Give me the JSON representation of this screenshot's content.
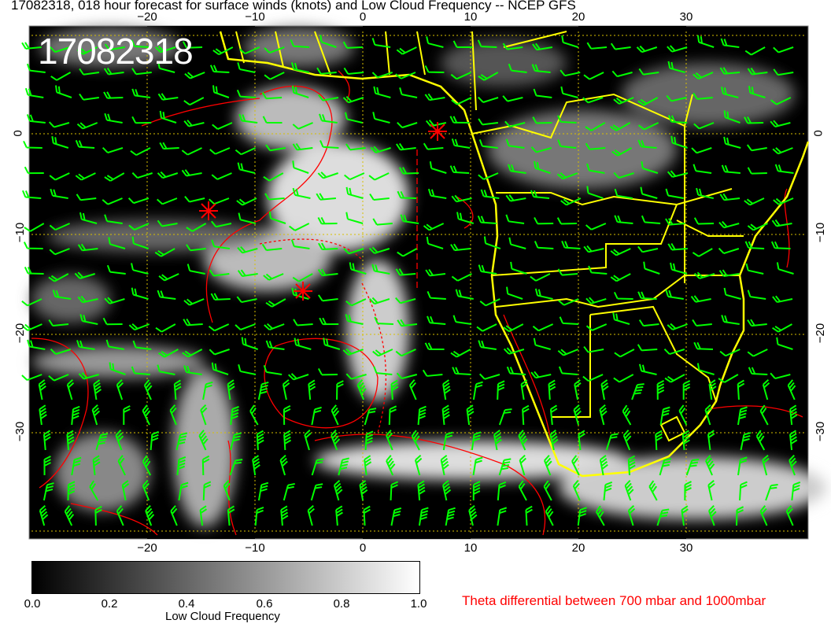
{
  "title": "17082318, 018 hour forecast for surface winds (knots) and Low Cloud Frequency -- NCEP GFS",
  "stamp": "17082318",
  "lon_ticks": [
    "−20",
    "−10",
    "0",
    "10",
    "20",
    "30"
  ],
  "lat_ticks": [
    "0",
    "−10",
    "−20",
    "−30"
  ],
  "colorbar": {
    "ticks": [
      "0.0",
      "0.2",
      "0.4",
      "0.6",
      "0.8",
      "1.0"
    ],
    "label": "Low Cloud Frequency",
    "range": [
      0,
      1
    ]
  },
  "contour_legend": "Theta differential between 700 mbar and 1000mbar",
  "colors": {
    "coast": "#ffff00",
    "barbs": "#00ff00",
    "contours": "#ff0000",
    "background": "#000000"
  }
}
